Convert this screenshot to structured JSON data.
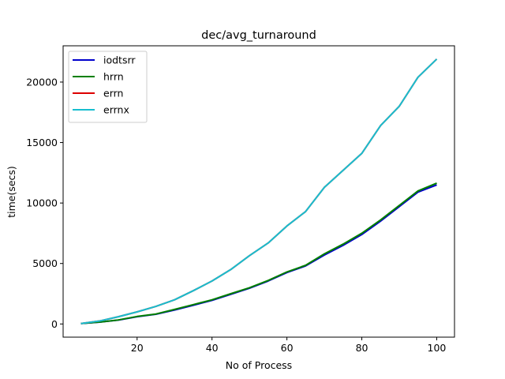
{
  "chart_data": {
    "type": "line",
    "title": "dec/avg_turnaround",
    "xlabel": "No of Process",
    "ylabel": "time(secs)",
    "xlim": [
      0.25,
      104.75
    ],
    "ylim": [
      -1090,
      23000
    ],
    "xticks": [
      20,
      40,
      60,
      80,
      100
    ],
    "yticks": [
      0,
      5000,
      10000,
      15000,
      20000
    ],
    "grid": false,
    "legend_position": "top-left",
    "series": [
      {
        "name": "iodtsrr",
        "color": "#0000cc",
        "x": [
          5,
          10,
          15,
          20,
          25,
          30,
          35,
          40,
          45,
          50,
          55,
          60,
          65,
          70,
          75,
          80,
          85,
          90,
          95,
          100
        ],
        "values": [
          40,
          150,
          320,
          600,
          800,
          1150,
          1550,
          1950,
          2450,
          2950,
          3550,
          4250,
          4800,
          5700,
          6500,
          7400,
          8500,
          9700,
          10900,
          11500
        ]
      },
      {
        "name": "hrrn",
        "color": "#008000",
        "x": [
          5,
          10,
          15,
          20,
          25,
          30,
          35,
          40,
          45,
          50,
          55,
          60,
          65,
          70,
          75,
          80,
          85,
          90,
          95,
          100
        ],
        "values": [
          40,
          160,
          330,
          620,
          820,
          1200,
          1600,
          2000,
          2500,
          3000,
          3600,
          4300,
          4850,
          5800,
          6600,
          7500,
          8600,
          9800,
          11000,
          11650
        ]
      },
      {
        "name": "errn",
        "color": "#dd0000",
        "x": [
          5,
          10,
          15,
          20,
          25,
          30,
          35,
          40,
          45,
          50,
          55,
          60,
          65,
          70,
          75,
          80,
          85,
          90,
          95,
          100
        ],
        "values": [
          40,
          250,
          600,
          1000,
          1450,
          2000,
          2750,
          3550,
          4500,
          5650,
          6700,
          8100,
          9300,
          11300,
          12700,
          14100,
          16400,
          18000,
          20400,
          21900
        ]
      },
      {
        "name": "errnx",
        "color": "#17becf",
        "x": [
          5,
          10,
          15,
          20,
          25,
          30,
          35,
          40,
          45,
          50,
          55,
          60,
          65,
          70,
          75,
          80,
          85,
          90,
          95,
          100
        ],
        "values": [
          40,
          250,
          600,
          1000,
          1450,
          2000,
          2750,
          3550,
          4500,
          5650,
          6700,
          8100,
          9300,
          11300,
          12700,
          14100,
          16400,
          18000,
          20400,
          21900
        ]
      }
    ]
  }
}
